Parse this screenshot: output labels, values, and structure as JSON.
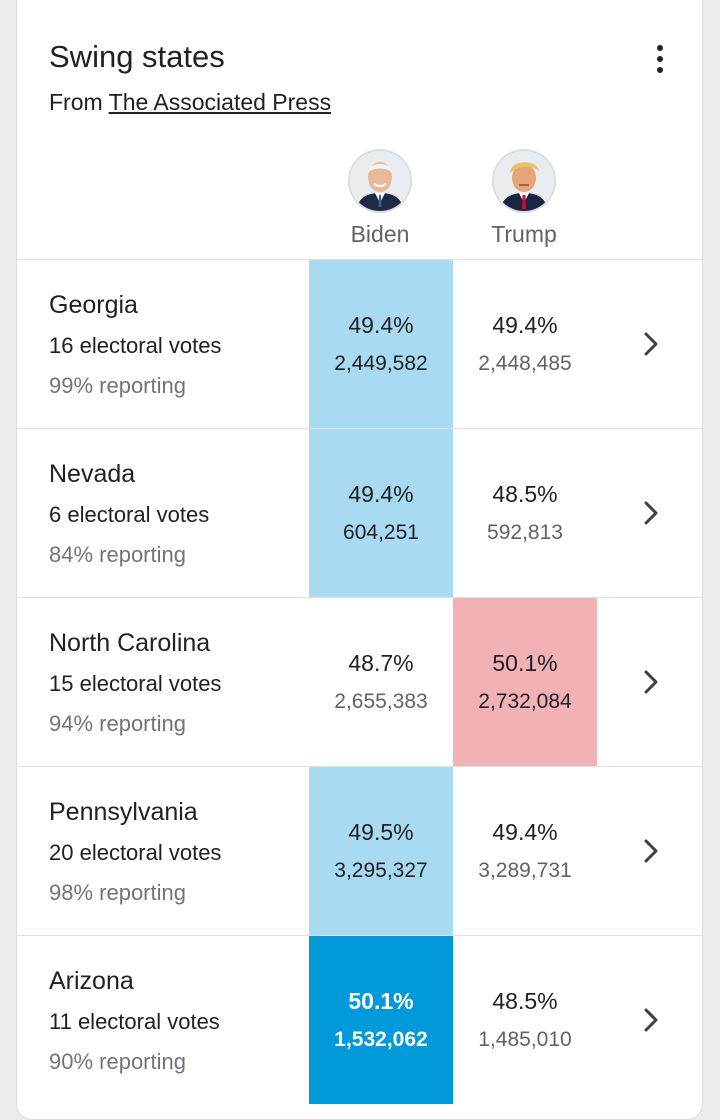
{
  "card": {
    "title": "Swing states",
    "source_prefix": "From",
    "source_link": "The Associated Press",
    "more_icon": "more-vert-icon"
  },
  "candidates": [
    {
      "name": "Biden",
      "avatar": "biden-portrait-icon",
      "color": "#0099d9"
    },
    {
      "name": "Trump",
      "avatar": "trump-portrait-icon",
      "color": "#e8868b"
    }
  ],
  "states": [
    {
      "name": "Georgia",
      "electoral": "16 electoral votes",
      "reporting": "99% reporting",
      "biden_pct": "49.4%",
      "biden_votes": "2,449,582",
      "trump_pct": "49.4%",
      "trump_votes": "2,448,485",
      "leader": "Biden",
      "called": false
    },
    {
      "name": "Nevada",
      "electoral": "6 electoral votes",
      "reporting": "84% reporting",
      "biden_pct": "49.4%",
      "biden_votes": "604,251",
      "trump_pct": "48.5%",
      "trump_votes": "592,813",
      "leader": "Biden",
      "called": false
    },
    {
      "name": "North Carolina",
      "electoral": "15 electoral votes",
      "reporting": "94% reporting",
      "biden_pct": "48.7%",
      "biden_votes": "2,655,383",
      "trump_pct": "50.1%",
      "trump_votes": "2,732,084",
      "leader": "Trump",
      "called": false
    },
    {
      "name": "Pennsylvania",
      "electoral": "20 electoral votes",
      "reporting": "98% reporting",
      "biden_pct": "49.5%",
      "biden_votes": "3,295,327",
      "trump_pct": "49.4%",
      "trump_votes": "3,289,731",
      "leader": "Biden",
      "called": false
    },
    {
      "name": "Arizona",
      "electoral": "11 electoral votes",
      "reporting": "90% reporting",
      "biden_pct": "50.1%",
      "biden_votes": "1,532,062",
      "trump_pct": "48.5%",
      "trump_votes": "1,485,010",
      "leader": "Biden",
      "called": true
    }
  ],
  "colors": {
    "biden_leading": "#a8dbf2",
    "biden_called": "#0099d9",
    "trump_leading": "#f2b2b5"
  },
  "row_icon": "chevron-right-icon"
}
